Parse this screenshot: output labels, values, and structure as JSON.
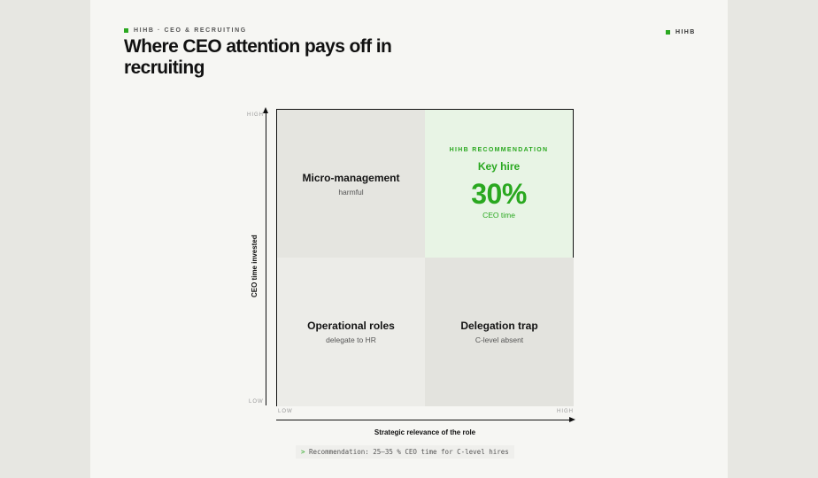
{
  "header": {
    "eyebrow": "HIHB · CEO & RECRUITING",
    "title": "Where CEO attention pays off in recruiting",
    "brand": "HIHB"
  },
  "matrix": {
    "y_axis": {
      "label": "CEO time invested",
      "high": "HIGH",
      "low": "LOW"
    },
    "x_axis": {
      "label": "Strategic relevance of the role",
      "low": "LOW",
      "high": "HIGH"
    },
    "quadrants": {
      "top_left": {
        "title": "Micro-management",
        "subtitle": "harmful"
      },
      "top_right": {
        "label": "HIHB RECOMMENDATION",
        "title": "Key hire",
        "value": "30%",
        "subtitle": "CEO time"
      },
      "bottom_left": {
        "title": "Operational roles",
        "subtitle": "delegate to HR"
      },
      "bottom_right": {
        "title": "Delegation trap",
        "subtitle": "C-level absent"
      }
    }
  },
  "footer": {
    "prompt": ">",
    "recommendation": "Recommendation: 25–35 % CEO time for C-level hires"
  },
  "colors": {
    "accent": "#2aa820",
    "page": "#f6f6f3",
    "background": "#e7e7e2"
  }
}
